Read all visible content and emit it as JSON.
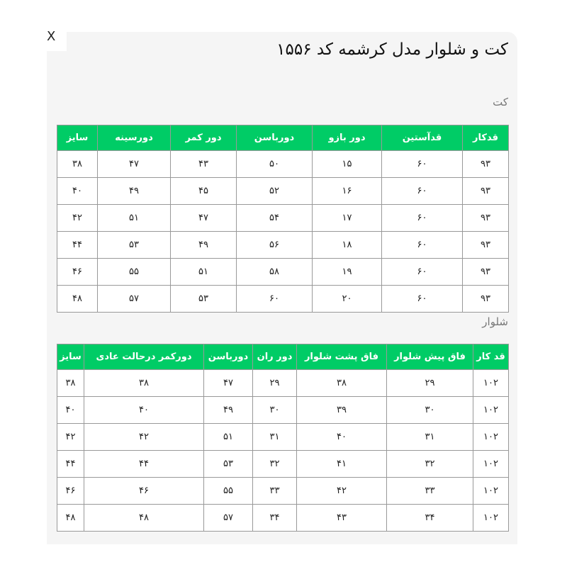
{
  "modal": {
    "close_label": "X",
    "title": "کت و شلوار مدل کرشمه کد ۱۵۵۶"
  },
  "colors": {
    "header_bg": "#00cc66",
    "panel_bg": "#f5f5f5"
  },
  "jacket": {
    "label": "کت",
    "headers": [
      "قدکار",
      "قدآستین",
      "دور بازو",
      "دورباسن",
      "دور کمر",
      "دورسینه",
      "سایز"
    ],
    "rows": [
      [
        "۹۳",
        "۶۰",
        "۱۵",
        "۵۰",
        "۴۳",
        "۴۷",
        "۳۸"
      ],
      [
        "۹۳",
        "۶۰",
        "۱۶",
        "۵۲",
        "۴۵",
        "۴۹",
        "۴۰"
      ],
      [
        "۹۳",
        "۶۰",
        "۱۷",
        "۵۴",
        "۴۷",
        "۵۱",
        "۴۲"
      ],
      [
        "۹۳",
        "۶۰",
        "۱۸",
        "۵۶",
        "۴۹",
        "۵۳",
        "۴۴"
      ],
      [
        "۹۳",
        "۶۰",
        "۱۹",
        "۵۸",
        "۵۱",
        "۵۵",
        "۴۶"
      ],
      [
        "۹۳",
        "۶۰",
        "۲۰",
        "۶۰",
        "۵۳",
        "۵۷",
        "۴۸"
      ]
    ]
  },
  "pants": {
    "label": "شلوار",
    "headers": [
      "قد کار",
      "فاق پیش شلوار",
      "فاق پشت شلوار",
      "دور ران",
      "دورباسن",
      "دورکمر درحالت عادی",
      "سایز"
    ],
    "rows": [
      [
        "۱۰۲",
        "۲۹",
        "۳۸",
        "۲۹",
        "۴۷",
        "۳۸",
        "۳۸"
      ],
      [
        "۱۰۲",
        "۳۰",
        "۳۹",
        "۳۰",
        "۴۹",
        "۴۰",
        "۴۰"
      ],
      [
        "۱۰۲",
        "۳۱",
        "۴۰",
        "۳۱",
        "۵۱",
        "۴۲",
        "۴۲"
      ],
      [
        "۱۰۲",
        "۳۲",
        "۴۱",
        "۳۲",
        "۵۳",
        "۴۴",
        "۴۴"
      ],
      [
        "۱۰۲",
        "۳۳",
        "۴۲",
        "۳۳",
        "۵۵",
        "۴۶",
        "۴۶"
      ],
      [
        "۱۰۲",
        "۳۴",
        "۴۳",
        "۳۴",
        "۵۷",
        "۴۸",
        "۴۸"
      ]
    ]
  }
}
